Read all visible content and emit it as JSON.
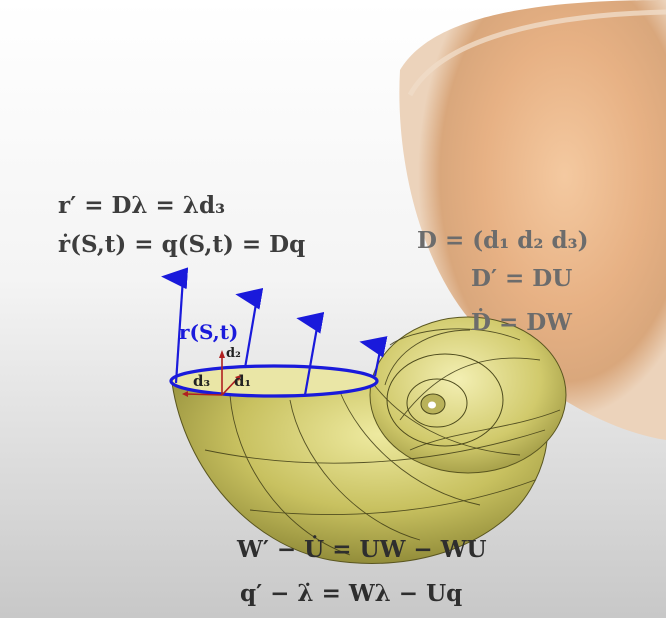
{
  "equations": {
    "r_prime": "r′ = Dλ = λd₃",
    "r_dot": "ṙ(S,t) = q(S,t) = Dq",
    "D_def": "D = (d₁  d₂  d₃)",
    "D_prime": "D′ = DU",
    "D_dot": "Ḋ = DW",
    "W_prime": "W′ − U̇ = UW − WU",
    "q_prime": "q′ − λ̇ = Wλ − Uq"
  },
  "labels": {
    "r_St": "r(S,t)",
    "d1": "d₁",
    "d2": "d₂",
    "d3": "d₃"
  },
  "colors": {
    "arrow_blue": "#1a1adb",
    "shell_gold": "#c9c45c",
    "bowl_tan": "#e8b98a",
    "text_gray": "#3d3d3d",
    "frame_red": "#b02020"
  },
  "icons": [
    "velocity-arrow",
    "director-frame"
  ]
}
